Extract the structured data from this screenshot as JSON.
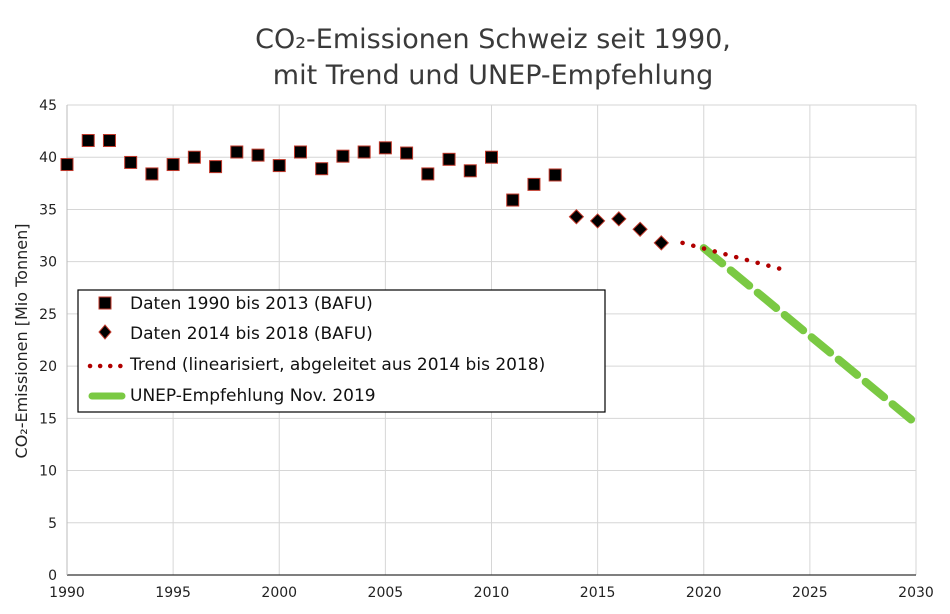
{
  "chart_data": {
    "type": "scatter",
    "title_lines": [
      "CO₂-Emissionen Schweiz seit 1990,",
      "mit Trend und UNEP-Empfehlung"
    ],
    "ylabel": "CO₂-Emissionen [Mio Tonnen]",
    "xlabel": "",
    "xlim": [
      1990,
      2030
    ],
    "ylim": [
      0,
      45
    ],
    "x_ticks": [
      1990,
      1995,
      2000,
      2005,
      2010,
      2015,
      2020,
      2025,
      2030
    ],
    "y_ticks": [
      0,
      5,
      10,
      15,
      20,
      25,
      30,
      35,
      40,
      45
    ],
    "grid": true,
    "legend_position": "left-middle",
    "colors": {
      "trend": "#b00000",
      "unep": "#7ac943",
      "marker_fill": "#000000",
      "marker_edge": "#c0392b"
    },
    "series": [
      {
        "name": "Daten 1990 bis 2013 (BAFU)",
        "marker": "square",
        "x": [
          1990,
          1991,
          1992,
          1993,
          1994,
          1995,
          1996,
          1997,
          1998,
          1999,
          2000,
          2001,
          2002,
          2003,
          2004,
          2005,
          2006,
          2007,
          2008,
          2009,
          2010,
          2011,
          2012,
          2013
        ],
        "y": [
          39.3,
          41.6,
          41.6,
          39.5,
          38.4,
          39.3,
          40.0,
          39.1,
          40.5,
          40.2,
          39.2,
          40.5,
          38.9,
          40.1,
          40.5,
          40.9,
          40.4,
          38.4,
          39.8,
          38.7,
          40.0,
          35.9,
          37.4,
          38.3
        ]
      },
      {
        "name": "Daten 2014 bis 2018 (BAFU)",
        "marker": "diamond",
        "x": [
          2014,
          2015,
          2016,
          2017,
          2018
        ],
        "y": [
          34.3,
          33.9,
          34.1,
          33.1,
          31.8
        ]
      },
      {
        "name": "Trend (linearisiert, abgeleitet aus 2014 bis 2018)",
        "style": "dotted",
        "x": [
          2019,
          2024
        ],
        "y": [
          31.8,
          29.1
        ]
      },
      {
        "name": "UNEP-Empfehlung Nov. 2019",
        "style": "dashed",
        "x": [
          2020,
          2030
        ],
        "y": [
          31.3,
          14.5
        ]
      }
    ]
  }
}
